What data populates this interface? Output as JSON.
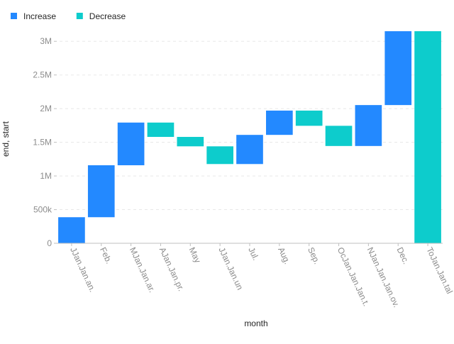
{
  "chart_data": {
    "type": "bar",
    "subtype": "waterfall",
    "xlabel": "month",
    "ylabel": "end, start",
    "ylim": [
      0,
      3150000
    ],
    "yticks": [
      {
        "value": 0,
        "label": "0"
      },
      {
        "value": 500000,
        "label": "500k"
      },
      {
        "value": 1000000,
        "label": "1M"
      },
      {
        "value": 1500000,
        "label": "1.5M"
      },
      {
        "value": 2000000,
        "label": "2M"
      },
      {
        "value": 2500000,
        "label": "2.5M"
      },
      {
        "value": 3000000,
        "label": "3M"
      }
    ],
    "grid": true,
    "legend_position": "top-left",
    "legend": [
      {
        "key": "increase",
        "label": "Increase",
        "color": "#2389ff"
      },
      {
        "key": "decrease",
        "label": "Decrease",
        "color": "#0dcccc"
      }
    ],
    "bars": [
      {
        "label": "JJan.Jan.an.",
        "start": 0,
        "end": 387264,
        "kind": "increase"
      },
      {
        "label": "Feb.",
        "start": 387264,
        "end": 1159000,
        "kind": "increase"
      },
      {
        "label": "MJan.Jan.ar.",
        "start": 1159000,
        "end": 1793000,
        "kind": "increase"
      },
      {
        "label": "AJan.Jan.pr.",
        "start": 1793000,
        "end": 1580000,
        "kind": "decrease"
      },
      {
        "label": "May",
        "start": 1580000,
        "end": 1440000,
        "kind": "decrease"
      },
      {
        "label": "JJan.Jan.un",
        "start": 1440000,
        "end": 1177000,
        "kind": "decrease"
      },
      {
        "label": "Jul.",
        "start": 1177000,
        "end": 1610000,
        "kind": "increase"
      },
      {
        "label": "Aug.",
        "start": 1610000,
        "end": 1971000,
        "kind": "increase"
      },
      {
        "label": "Sep.",
        "start": 1971000,
        "end": 1745000,
        "kind": "decrease"
      },
      {
        "label": "OcJan.Jan.Jan.t.",
        "start": 1745000,
        "end": 1445000,
        "kind": "decrease"
      },
      {
        "label": "NJan.Jan.Jan.ov.",
        "start": 1445000,
        "end": 2053000,
        "kind": "increase"
      },
      {
        "label": "Dec.",
        "start": 2053000,
        "end": 3150000,
        "kind": "increase"
      },
      {
        "label": "ToJan.Jan.tal",
        "start": 0,
        "end": 3150000,
        "kind": "decrease"
      }
    ]
  }
}
